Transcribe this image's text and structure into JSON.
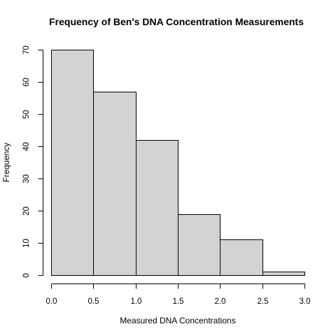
{
  "chart_data": {
    "type": "bar",
    "title": "Frequency of Ben's DNA Concentration Measurements",
    "xlabel": "Measured DNA Concentrations",
    "ylabel": "Frequency",
    "bins": [
      {
        "start": 0.0,
        "end": 0.5,
        "value": 70
      },
      {
        "start": 0.5,
        "end": 1.0,
        "value": 57
      },
      {
        "start": 1.0,
        "end": 1.5,
        "value": 42
      },
      {
        "start": 1.5,
        "end": 2.0,
        "value": 19
      },
      {
        "start": 2.0,
        "end": 2.5,
        "value": 11
      },
      {
        "start": 2.5,
        "end": 3.0,
        "value": 1
      }
    ],
    "xticks": [
      "0.0",
      "0.5",
      "1.0",
      "1.5",
      "2.0",
      "2.5",
      "3.0"
    ],
    "yticks": [
      "0",
      "10",
      "20",
      "30",
      "40",
      "50",
      "60",
      "70"
    ],
    "xlim": [
      0,
      3
    ],
    "ylim": [
      0,
      70
    ],
    "grid": false,
    "colors": {
      "bar_fill": "#d3d3d3",
      "bar_stroke": "#000000"
    }
  }
}
